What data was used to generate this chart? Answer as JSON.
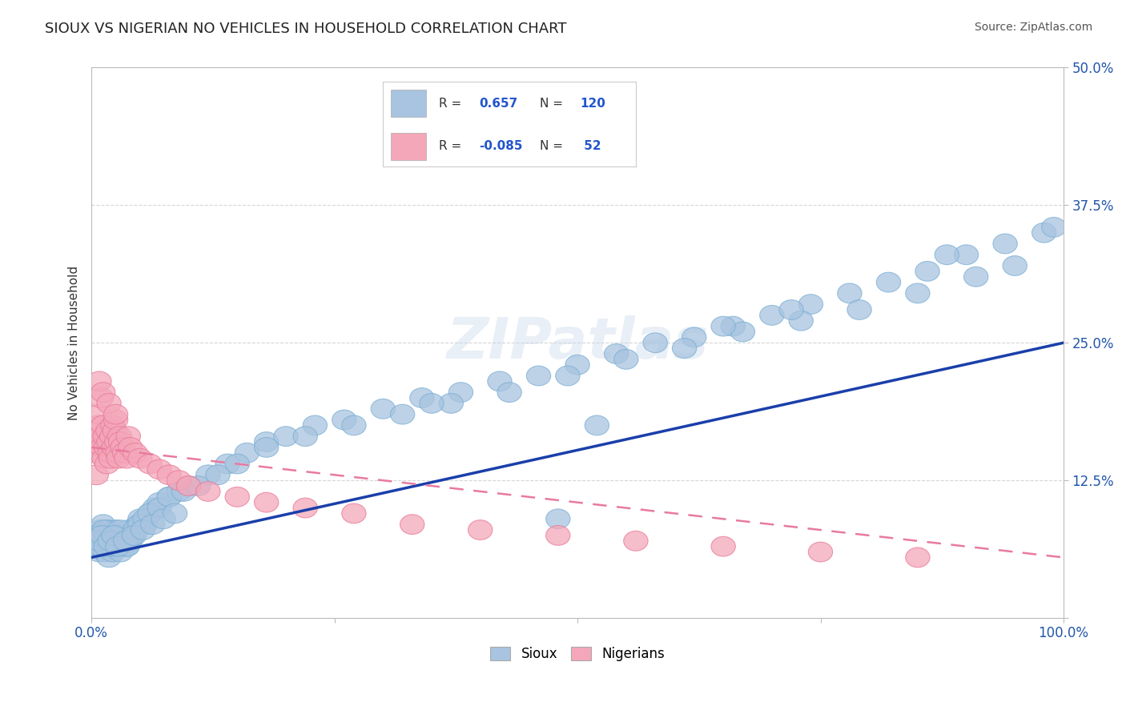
{
  "title": "SIOUX VS NIGERIAN NO VEHICLES IN HOUSEHOLD CORRELATION CHART",
  "source": "Source: ZipAtlas.com",
  "ylabel": "No Vehicles in Household",
  "xlim": [
    0.0,
    1.0
  ],
  "ylim": [
    0.0,
    0.5
  ],
  "sioux_color": "#a8c4e0",
  "sioux_edge_color": "#7aafd4",
  "nigerian_color": "#f4a7b9",
  "nigerian_edge_color": "#e87a9a",
  "sioux_line_color": "#1a3faa",
  "nigerian_line_color": "#e87aa0",
  "watermark": "ZIPatlas",
  "background_color": "#ffffff",
  "title_color": "#222222",
  "axis_label_color": "#2255aa",
  "sioux_slope": 0.195,
  "sioux_intercept": 0.055,
  "nigerian_slope": -0.1,
  "nigerian_intercept": 0.155,
  "sioux_x": [
    0.004,
    0.006,
    0.008,
    0.009,
    0.01,
    0.011,
    0.012,
    0.013,
    0.014,
    0.015,
    0.016,
    0.017,
    0.018,
    0.019,
    0.02,
    0.021,
    0.022,
    0.023,
    0.024,
    0.025,
    0.026,
    0.027,
    0.028,
    0.029,
    0.03,
    0.032,
    0.034,
    0.036,
    0.038,
    0.04,
    0.042,
    0.045,
    0.048,
    0.05,
    0.055,
    0.06,
    0.065,
    0.07,
    0.08,
    0.09,
    0.1,
    0.12,
    0.14,
    0.16,
    0.18,
    0.2,
    0.23,
    0.26,
    0.3,
    0.34,
    0.38,
    0.42,
    0.46,
    0.5,
    0.54,
    0.58,
    0.62,
    0.66,
    0.7,
    0.74,
    0.78,
    0.82,
    0.86,
    0.9,
    0.94,
    0.98,
    0.005,
    0.009,
    0.013,
    0.017,
    0.021,
    0.025,
    0.029,
    0.033,
    0.037,
    0.041,
    0.045,
    0.05,
    0.055,
    0.06,
    0.07,
    0.08,
    0.095,
    0.11,
    0.13,
    0.15,
    0.18,
    0.22,
    0.27,
    0.32,
    0.37,
    0.43,
    0.49,
    0.55,
    0.61,
    0.67,
    0.73,
    0.79,
    0.85,
    0.91,
    0.95,
    0.99,
    0.007,
    0.011,
    0.015,
    0.019,
    0.023,
    0.027,
    0.035,
    0.044,
    0.053,
    0.063,
    0.074,
    0.086,
    0.35,
    0.48,
    0.52,
    0.65,
    0.72,
    0.88
  ],
  "sioux_y": [
    0.065,
    0.075,
    0.06,
    0.08,
    0.07,
    0.065,
    0.085,
    0.075,
    0.06,
    0.07,
    0.065,
    0.08,
    0.055,
    0.075,
    0.07,
    0.065,
    0.06,
    0.075,
    0.07,
    0.08,
    0.065,
    0.07,
    0.075,
    0.065,
    0.06,
    0.07,
    0.075,
    0.065,
    0.08,
    0.07,
    0.075,
    0.08,
    0.085,
    0.09,
    0.085,
    0.095,
    0.1,
    0.105,
    0.11,
    0.115,
    0.12,
    0.13,
    0.14,
    0.15,
    0.16,
    0.165,
    0.175,
    0.18,
    0.19,
    0.2,
    0.205,
    0.215,
    0.22,
    0.23,
    0.24,
    0.25,
    0.255,
    0.265,
    0.275,
    0.285,
    0.295,
    0.305,
    0.315,
    0.33,
    0.34,
    0.35,
    0.075,
    0.065,
    0.08,
    0.07,
    0.065,
    0.075,
    0.08,
    0.07,
    0.065,
    0.075,
    0.08,
    0.085,
    0.09,
    0.095,
    0.1,
    0.11,
    0.115,
    0.12,
    0.13,
    0.14,
    0.155,
    0.165,
    0.175,
    0.185,
    0.195,
    0.205,
    0.22,
    0.235,
    0.245,
    0.26,
    0.27,
    0.28,
    0.295,
    0.31,
    0.32,
    0.355,
    0.07,
    0.075,
    0.065,
    0.07,
    0.075,
    0.065,
    0.07,
    0.075,
    0.08,
    0.085,
    0.09,
    0.095,
    0.195,
    0.09,
    0.175,
    0.265,
    0.28,
    0.33
  ],
  "nigerian_x": [
    0.004,
    0.005,
    0.006,
    0.007,
    0.008,
    0.009,
    0.01,
    0.011,
    0.012,
    0.013,
    0.014,
    0.015,
    0.016,
    0.017,
    0.018,
    0.019,
    0.02,
    0.021,
    0.022,
    0.023,
    0.024,
    0.025,
    0.026,
    0.027,
    0.028,
    0.029,
    0.03,
    0.032,
    0.034,
    0.036,
    0.038,
    0.04,
    0.045,
    0.05,
    0.06,
    0.07,
    0.08,
    0.09,
    0.1,
    0.12,
    0.15,
    0.18,
    0.22,
    0.27,
    0.33,
    0.4,
    0.48,
    0.56,
    0.65,
    0.75,
    0.85,
    0.008,
    0.012,
    0.018,
    0.025
  ],
  "nigerian_y": [
    0.15,
    0.13,
    0.16,
    0.175,
    0.185,
    0.165,
    0.2,
    0.155,
    0.175,
    0.145,
    0.165,
    0.155,
    0.14,
    0.17,
    0.16,
    0.15,
    0.145,
    0.165,
    0.175,
    0.155,
    0.17,
    0.18,
    0.16,
    0.15,
    0.145,
    0.165,
    0.16,
    0.155,
    0.15,
    0.145,
    0.165,
    0.155,
    0.15,
    0.145,
    0.14,
    0.135,
    0.13,
    0.125,
    0.12,
    0.115,
    0.11,
    0.105,
    0.1,
    0.095,
    0.085,
    0.08,
    0.075,
    0.07,
    0.065,
    0.06,
    0.055,
    0.215,
    0.205,
    0.195,
    0.185
  ]
}
